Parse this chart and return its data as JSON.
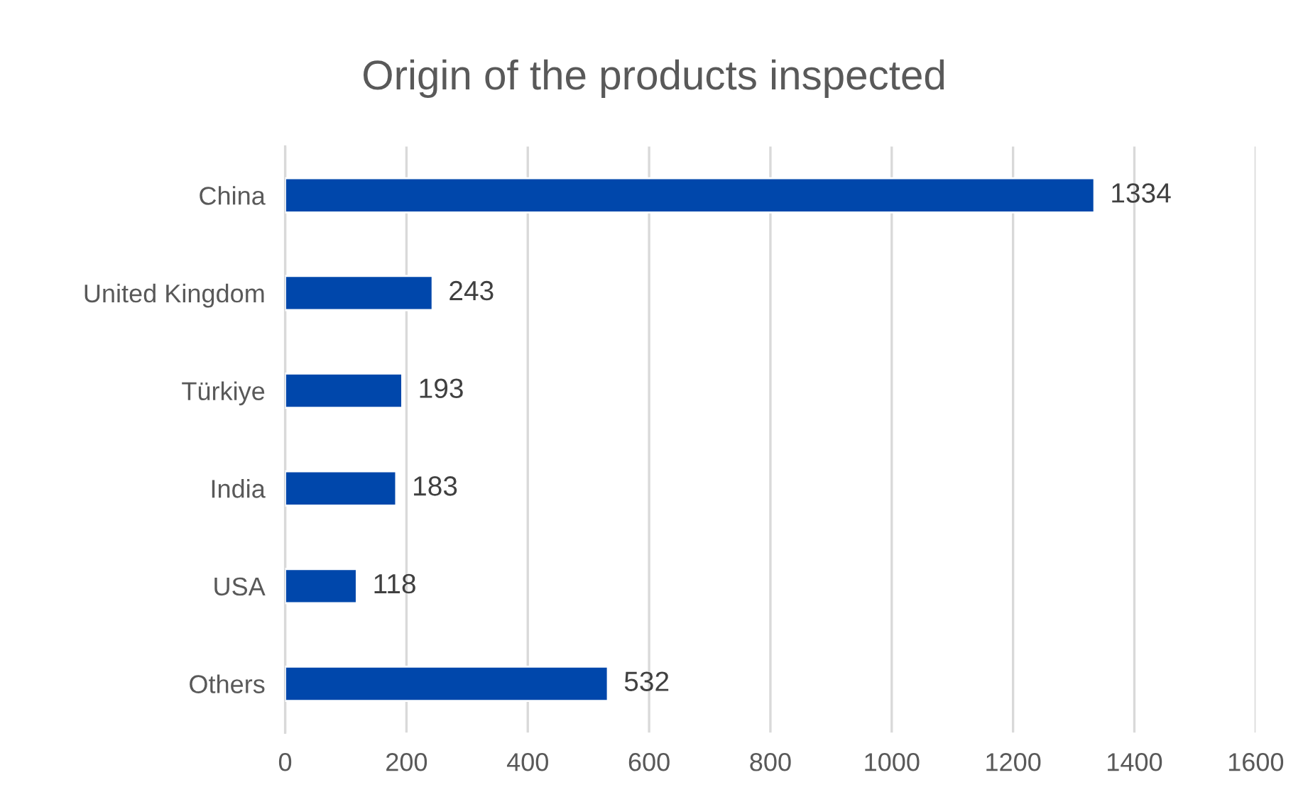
{
  "chart_data": {
    "type": "bar",
    "orientation": "horizontal",
    "title": "Origin of the products inspected",
    "categories": [
      "China",
      "United Kingdom",
      "Türkiye",
      "India",
      "USA",
      "Others"
    ],
    "values": [
      1334,
      243,
      193,
      183,
      118,
      532
    ],
    "color": "#0047ab",
    "xlim": [
      0,
      1600
    ],
    "xticks": [
      0,
      200,
      400,
      600,
      800,
      1000,
      1200,
      1400,
      1600
    ],
    "grid": "x",
    "data_labels": true
  }
}
